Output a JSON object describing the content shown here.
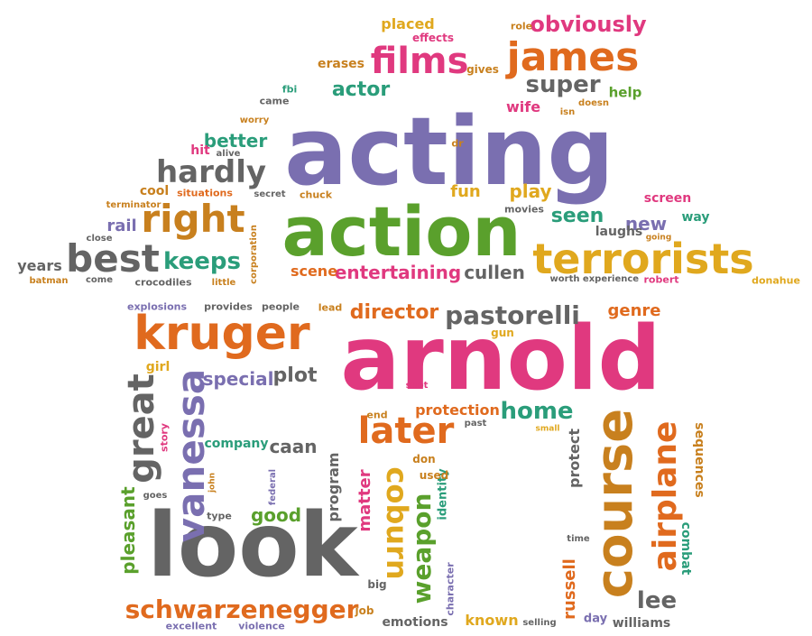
{
  "words": {
    "acting": "acting",
    "arnold": "arnold",
    "action": "action",
    "look": "look",
    "kruger": "kruger",
    "terrorists": "terrorists",
    "course": "course",
    "james": "james",
    "films": "films",
    "best": "best",
    "right": "right",
    "hardly": "hardly",
    "vanessa": "vanessa",
    "great": "great",
    "pastorelli": "pastorelli",
    "later": "later",
    "schwarzenegger": "schwarzenegger",
    "airplane": "airplane",
    "coburn": "coburn",
    "weapon": "weapon",
    "super": "super",
    "obviously": "obviously",
    "keeps": "keeps",
    "director": "director",
    "entertaining": "entertaining",
    "cullen": "cullen",
    "actor": "actor",
    "home": "home",
    "lee": "lee",
    "plot": "plot",
    "special": "special",
    "better": "better",
    "seen": "seen",
    "new": "new",
    "play": "play",
    "fun": "fun",
    "scene": "scene",
    "good": "good",
    "caan": "caan",
    "company": "company",
    "genre": "genre",
    "protection": "protection",
    "russell": "russell",
    "program": "program",
    "pleasant": "pleasant",
    "matter": "matter",
    "identity": "identity",
    "protect": "protect",
    "sequences": "sequences",
    "combat": "combat",
    "williams": "williams",
    "known": "known",
    "emotions": "emotions",
    "excellent": "excellent",
    "violence": "violence",
    "job": "job",
    "big": "big",
    "character": "character",
    "selling": "selling",
    "day": "day",
    "time": "time",
    "placed": "placed",
    "effects": "effects",
    "role": "role",
    "erases": "erases",
    "gives": "gives",
    "help": "help",
    "wife": "wife",
    "isn": "isn",
    "doesn": "doesn",
    "fbi": "fbi",
    "came": "came",
    "worry": "worry",
    "alive": "alive",
    "hit": "hit",
    "dr": "dr",
    "cool": "cool",
    "situations": "situations",
    "secret": "secret",
    "chuck": "chuck",
    "terminator": "terminator",
    "rail": "rail",
    "close": "close",
    "movies": "movies",
    "laughs": "laughs",
    "screen": "screen",
    "way": "way",
    "going": "going",
    "years": "years",
    "batman": "batman",
    "come": "come",
    "crocodiles": "crocodiles",
    "little": "little",
    "corporation": "corporation",
    "worth": "worth",
    "experience": "experience",
    "robert": "robert",
    "donahue": "donahue",
    "explosions": "explosions",
    "provides": "provides",
    "people": "people",
    "lead": "lead",
    "gun": "gun",
    "girl": "girl",
    "shot": "shot",
    "end": "end",
    "past": "past",
    "small": "small",
    "story": "story",
    "john": "john",
    "federal": "federal",
    "don": "don",
    "used": "used",
    "goes": "goes",
    "type": "type"
  }
}
